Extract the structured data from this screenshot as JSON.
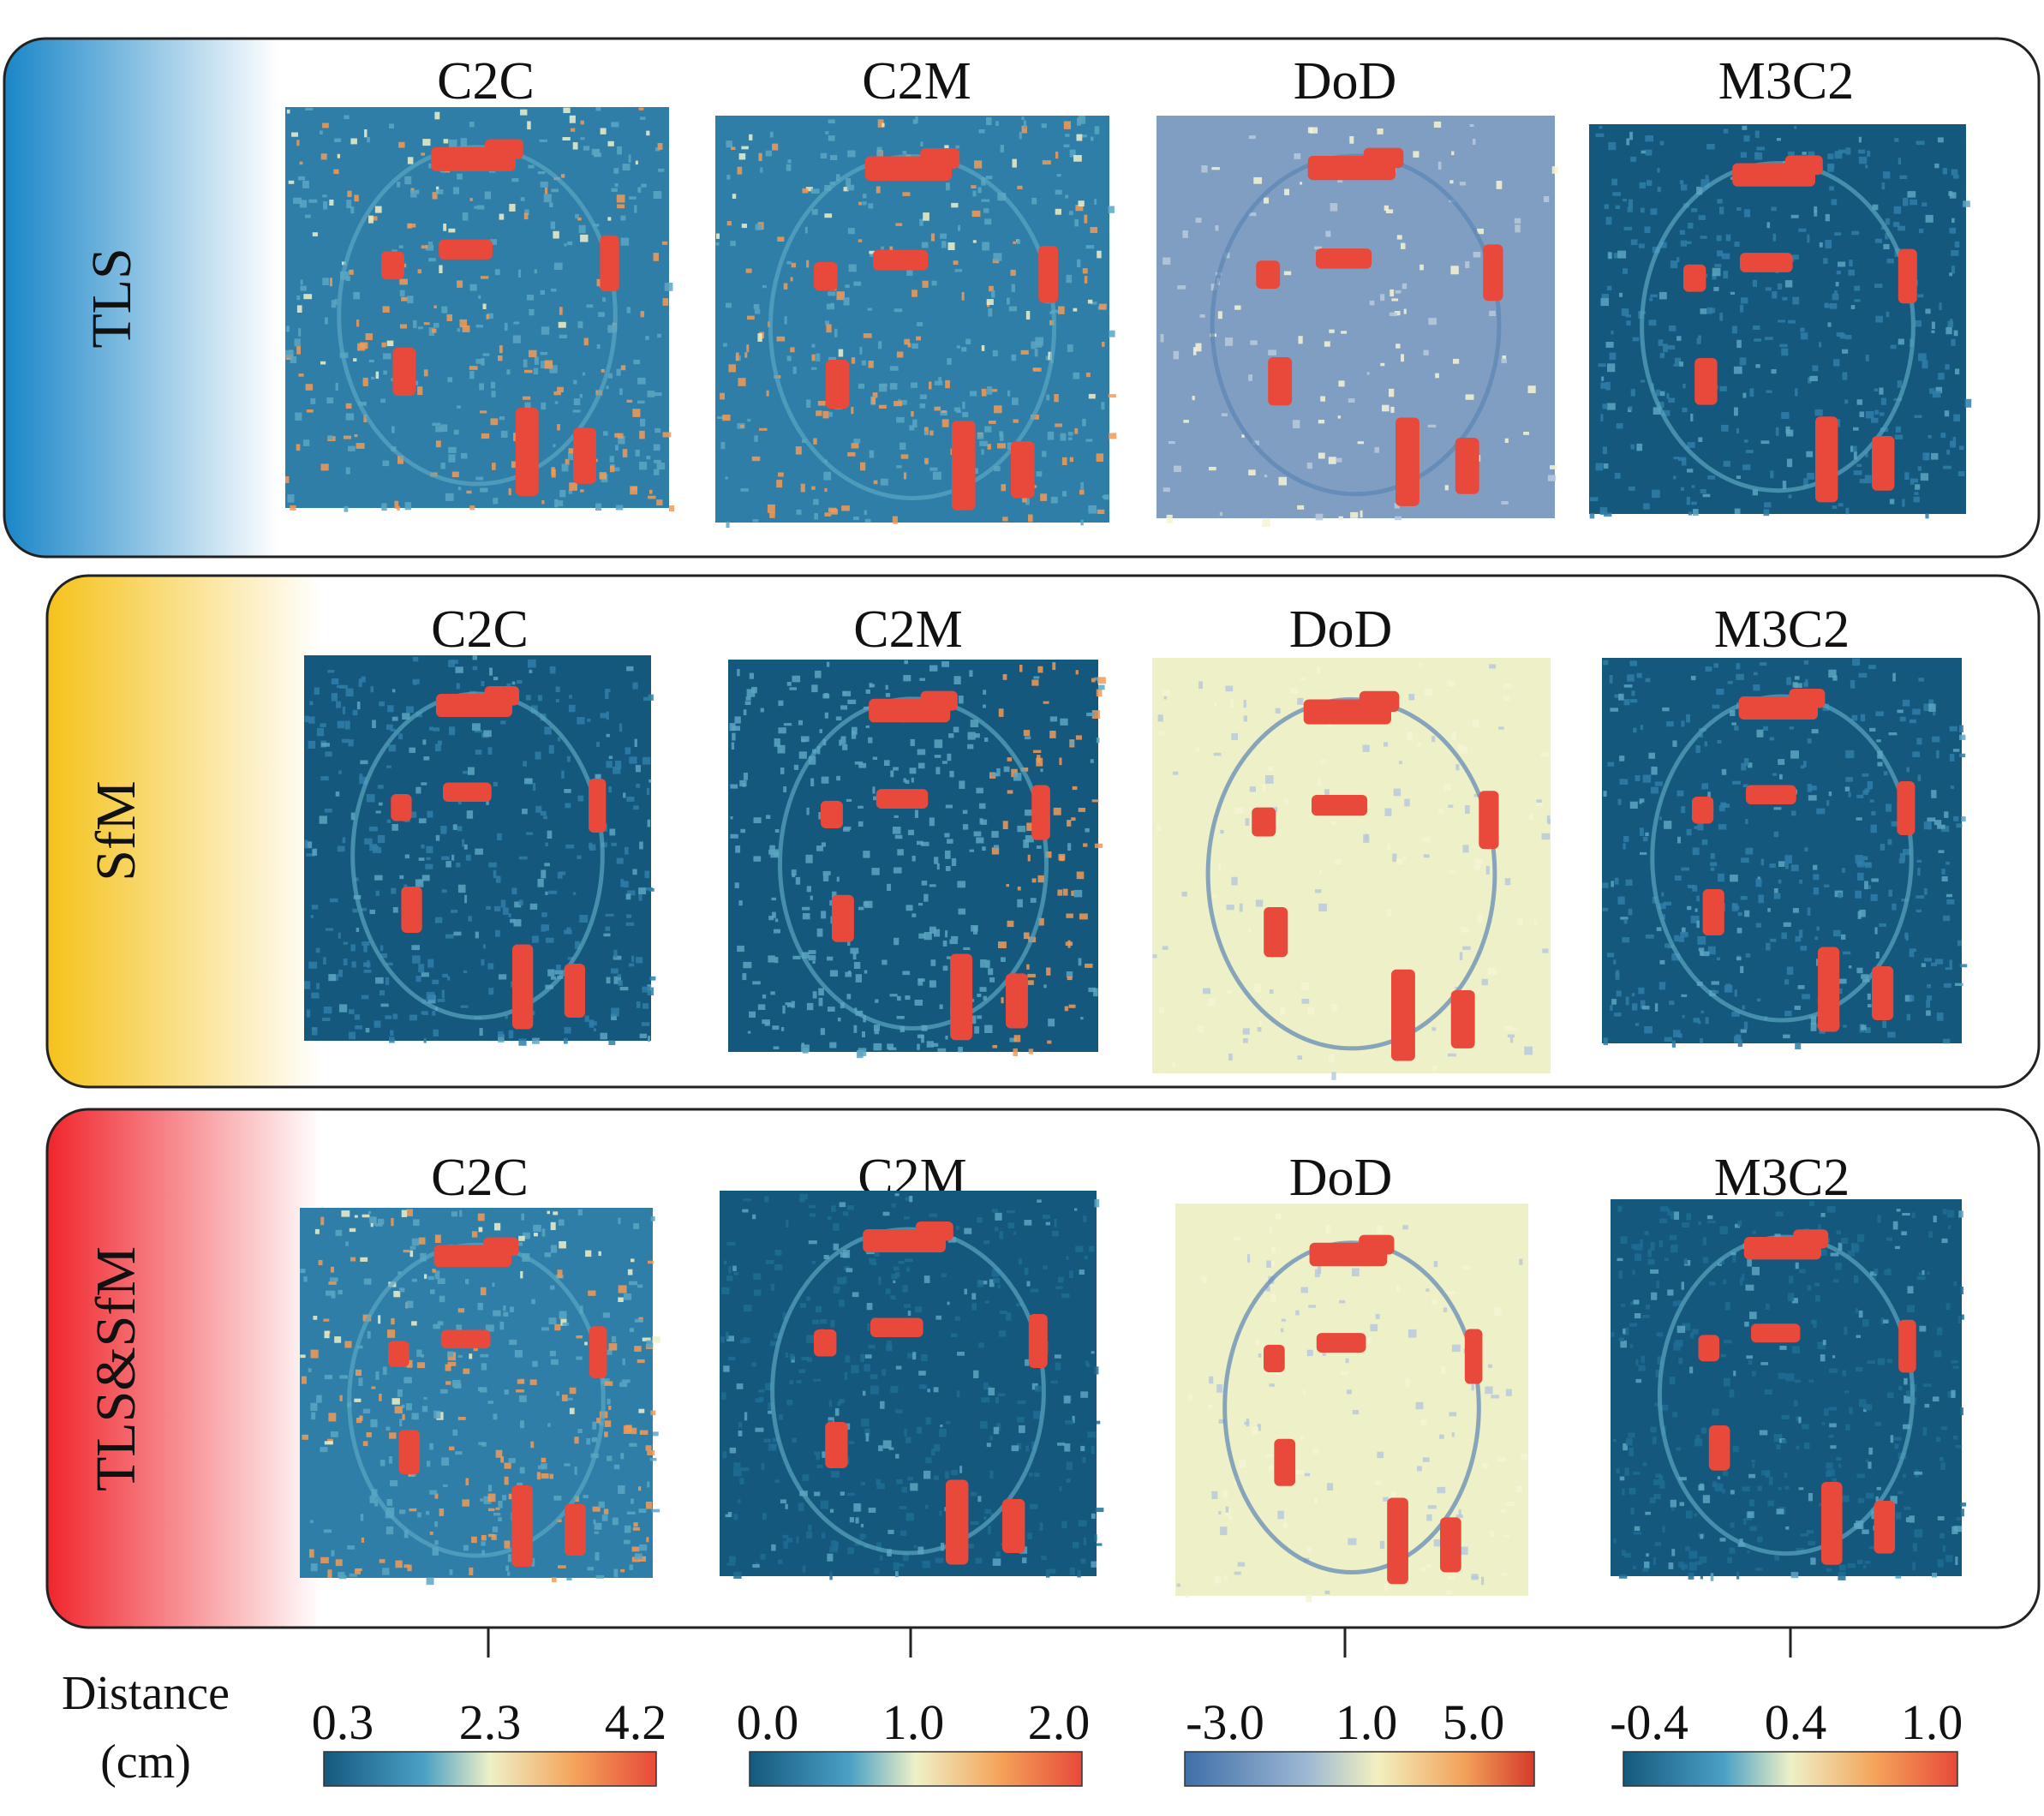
{
  "figure": {
    "rows": [
      {
        "label": "TLS",
        "accent": "#1a86c8"
      },
      {
        "label": "SfM",
        "accent": "#f5c21b"
      },
      {
        "label": "TLS&SfM",
        "accent": "#f0252c"
      }
    ],
    "methods": [
      "C2C",
      "C2M",
      "DoD",
      "M3C2"
    ],
    "colors": {
      "blue_dark": "#15587e",
      "blue": "#2f7ea8",
      "teal": "#5aa6c2",
      "cream": "#eef0c8",
      "orange": "#f29a55",
      "red": "#e8493a",
      "dod_base": "#7f9ec2",
      "frame": "#222222"
    }
  },
  "legend": {
    "title_line1": "Distance",
    "title_line2": "(cm)",
    "colorbars": [
      {
        "method": "C2C",
        "ticks": [
          "0.3",
          "2.3",
          "4.2"
        ]
      },
      {
        "method": "C2M",
        "ticks": [
          "0.0",
          "1.0",
          "2.0"
        ]
      },
      {
        "method": "DoD",
        "ticks": [
          "-3.0",
          "1.0",
          "5.0"
        ]
      },
      {
        "method": "M3C2",
        "ticks": [
          "-0.4",
          "0.4",
          "1.0"
        ]
      }
    ]
  }
}
